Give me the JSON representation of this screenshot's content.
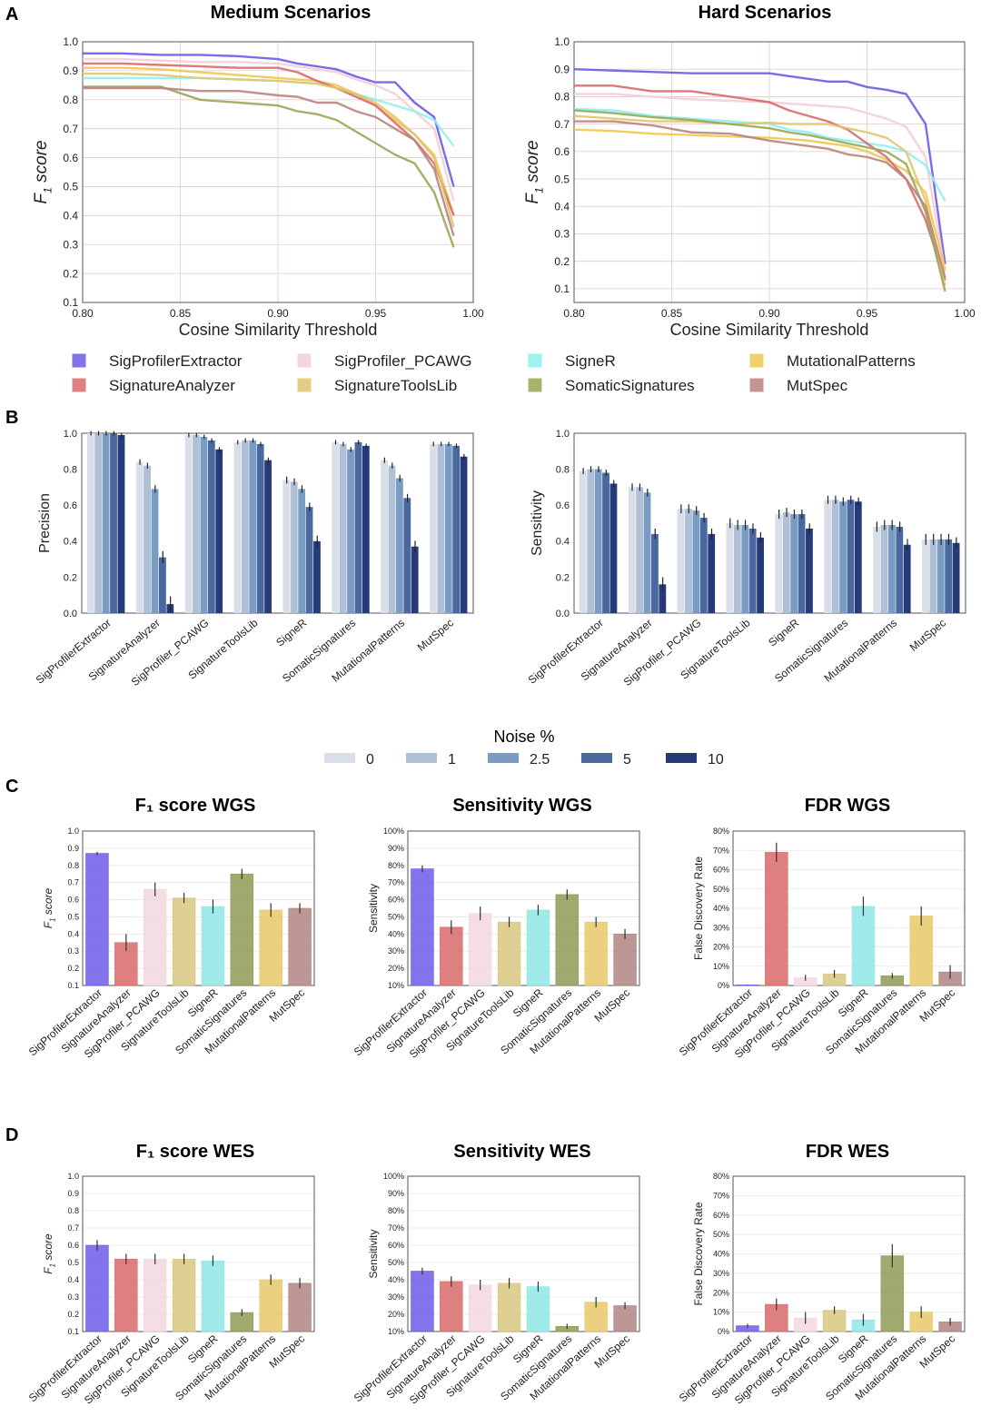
{
  "figure": {
    "panel_labels": [
      "A",
      "B",
      "C",
      "D"
    ]
  },
  "methods": [
    "SigProfilerExtractor",
    "SignatureAnalyzer",
    "SigProfiler_PCAWG",
    "SignatureToolsLib",
    "SigneR",
    "SomaticSignatures",
    "MutationalPatterns",
    "MutSpec"
  ],
  "method_colors": {
    "SigProfilerExtractor": "#6c5ce7",
    "SignatureAnalyzer": "#d96a6a",
    "SigProfiler_PCAWG": "#f2d7de",
    "SignatureToolsLib": "#d8c77f",
    "SigneR": "#8fe6e6",
    "SomaticSignatures": "#8f9a55",
    "MutationalPatterns": "#e8c868",
    "MutSpec": "#b08582"
  },
  "line_legend": {
    "entries": [
      "SigProfilerExtractor",
      "SigProfiler_PCAWG",
      "SigneR",
      "MutationalPatterns",
      "SignatureAnalyzer",
      "SignatureToolsLib",
      "SomaticSignatures",
      "MutSpec"
    ],
    "colors": [
      "#6c5ce7",
      "#f2cfd6",
      "#8ff0f0",
      "#f0c850",
      "#d96a6a",
      "#e0c570",
      "#9aa656",
      "#b9847f"
    ]
  },
  "noise_legend": {
    "title": "Noise %",
    "entries": [
      "0",
      "1",
      "2.5",
      "5",
      "10"
    ],
    "colors": [
      "#d9dee9",
      "#aebfd6",
      "#7a9bc2",
      "#48689e",
      "#263a78"
    ]
  },
  "chart_data": [
    {
      "id": "A-medium",
      "type": "line",
      "title": "Medium Scenarios",
      "xlabel": "Cosine Similarity Threshold",
      "ylabel": "F1 score",
      "xlim": [
        0.8,
        1.0
      ],
      "ylim": [
        0.1,
        1.0
      ],
      "xticks": [
        0.8,
        0.85,
        0.9,
        0.95,
        1.0
      ],
      "xtick_labels": [
        "0.80",
        "0.85",
        "0.90",
        "0.95",
        "1.00"
      ],
      "yticks": [
        0.1,
        0.2,
        0.3,
        0.4,
        0.5,
        0.6,
        0.7,
        0.8,
        0.9,
        1.0
      ],
      "ytick_labels": [
        "0.1",
        "0.2",
        "0.3",
        "0.4",
        "0.5",
        "0.6",
        "0.7",
        "0.8",
        "0.9",
        "1.0"
      ],
      "x": [
        0.8,
        0.82,
        0.84,
        0.86,
        0.88,
        0.9,
        0.91,
        0.92,
        0.93,
        0.94,
        0.95,
        0.96,
        0.97,
        0.98,
        0.99
      ],
      "series": [
        {
          "name": "SigProfilerExtractor",
          "values": [
            0.96,
            0.96,
            0.955,
            0.955,
            0.95,
            0.94,
            0.925,
            0.915,
            0.905,
            0.88,
            0.86,
            0.86,
            0.79,
            0.74,
            0.5
          ]
        },
        {
          "name": "SigProfiler_PCAWG",
          "values": [
            0.94,
            0.94,
            0.935,
            0.93,
            0.93,
            0.925,
            0.915,
            0.905,
            0.895,
            0.87,
            0.85,
            0.82,
            0.76,
            0.7,
            0.45
          ]
        },
        {
          "name": "SigneR",
          "values": [
            0.875,
            0.875,
            0.875,
            0.875,
            0.87,
            0.865,
            0.86,
            0.855,
            0.84,
            0.82,
            0.8,
            0.78,
            0.76,
            0.73,
            0.64
          ]
        },
        {
          "name": "MutationalPatterns",
          "values": [
            0.91,
            0.91,
            0.905,
            0.895,
            0.885,
            0.875,
            0.87,
            0.865,
            0.85,
            0.82,
            0.78,
            0.73,
            0.68,
            0.61,
            0.4
          ]
        },
        {
          "name": "SignatureAnalyzer",
          "values": [
            0.925,
            0.925,
            0.92,
            0.915,
            0.91,
            0.91,
            0.895,
            0.865,
            0.84,
            0.81,
            0.78,
            0.72,
            0.66,
            0.58,
            0.4
          ]
        },
        {
          "name": "SignatureToolsLib",
          "values": [
            0.89,
            0.89,
            0.885,
            0.875,
            0.87,
            0.865,
            0.86,
            0.855,
            0.84,
            0.82,
            0.79,
            0.74,
            0.68,
            0.6,
            0.36
          ]
        },
        {
          "name": "SomaticSignatures",
          "values": [
            0.845,
            0.845,
            0.845,
            0.8,
            0.79,
            0.78,
            0.76,
            0.75,
            0.73,
            0.69,
            0.65,
            0.61,
            0.58,
            0.48,
            0.29
          ]
        },
        {
          "name": "MutSpec",
          "values": [
            0.84,
            0.84,
            0.84,
            0.83,
            0.83,
            0.815,
            0.81,
            0.79,
            0.79,
            0.76,
            0.74,
            0.7,
            0.66,
            0.56,
            0.33
          ]
        }
      ]
    },
    {
      "id": "A-hard",
      "type": "line",
      "title": "Hard Scenarios",
      "xlabel": "Cosine Similarity Threshold",
      "ylabel": "F1 score",
      "xlim": [
        0.8,
        1.0
      ],
      "ylim": [
        0.05,
        1.0
      ],
      "xticks": [
        0.8,
        0.85,
        0.9,
        0.95,
        1.0
      ],
      "xtick_labels": [
        "0.80",
        "0.85",
        "0.90",
        "0.95",
        "1.00"
      ],
      "yticks": [
        0.1,
        0.2,
        0.3,
        0.4,
        0.5,
        0.6,
        0.7,
        0.8,
        0.9,
        1.0
      ],
      "ytick_labels": [
        "0.1",
        "0.2",
        "0.3",
        "0.4",
        "0.5",
        "0.6",
        "0.7",
        "0.8",
        "0.9",
        "1.0"
      ],
      "x": [
        0.8,
        0.82,
        0.84,
        0.86,
        0.88,
        0.9,
        0.91,
        0.92,
        0.93,
        0.94,
        0.95,
        0.96,
        0.97,
        0.98,
        0.99
      ],
      "series": [
        {
          "name": "SigProfilerExtractor",
          "values": [
            0.9,
            0.895,
            0.89,
            0.885,
            0.885,
            0.885,
            0.875,
            0.865,
            0.855,
            0.855,
            0.835,
            0.825,
            0.81,
            0.7,
            0.19
          ]
        },
        {
          "name": "SigProfiler_PCAWG",
          "values": [
            0.81,
            0.81,
            0.8,
            0.79,
            0.785,
            0.78,
            0.775,
            0.77,
            0.765,
            0.76,
            0.74,
            0.72,
            0.69,
            0.58,
            0.16
          ]
        },
        {
          "name": "SigneR",
          "values": [
            0.755,
            0.75,
            0.73,
            0.72,
            0.71,
            0.7,
            0.68,
            0.67,
            0.65,
            0.64,
            0.63,
            0.62,
            0.6,
            0.55,
            0.42
          ]
        },
        {
          "name": "MutationalPatterns",
          "values": [
            0.68,
            0.675,
            0.665,
            0.66,
            0.655,
            0.65,
            0.645,
            0.64,
            0.63,
            0.62,
            0.6,
            0.57,
            0.53,
            0.45,
            0.17
          ]
        },
        {
          "name": "SignatureAnalyzer",
          "values": [
            0.84,
            0.84,
            0.82,
            0.82,
            0.8,
            0.78,
            0.75,
            0.73,
            0.71,
            0.68,
            0.63,
            0.58,
            0.5,
            0.35,
            0.13
          ]
        },
        {
          "name": "SignatureToolsLib",
          "values": [
            0.73,
            0.72,
            0.71,
            0.71,
            0.7,
            0.705,
            0.7,
            0.7,
            0.7,
            0.685,
            0.67,
            0.65,
            0.6,
            0.42,
            0.11
          ]
        },
        {
          "name": "SomaticSignatures",
          "values": [
            0.75,
            0.74,
            0.725,
            0.715,
            0.7,
            0.685,
            0.67,
            0.66,
            0.645,
            0.63,
            0.615,
            0.6,
            0.555,
            0.38,
            0.09
          ]
        },
        {
          "name": "MutSpec",
          "values": [
            0.71,
            0.71,
            0.695,
            0.67,
            0.665,
            0.64,
            0.63,
            0.62,
            0.61,
            0.59,
            0.58,
            0.56,
            0.5,
            0.4,
            0.14
          ]
        }
      ]
    },
    {
      "id": "B-precision",
      "type": "bar",
      "title": "",
      "ylabel": "Precision",
      "ylim": [
        0,
        1.0
      ],
      "yticks": [
        0,
        0.2,
        0.4,
        0.6,
        0.8,
        1.0
      ],
      "ytick_labels": [
        "0.0",
        "0.2",
        "0.4",
        "0.6",
        "0.8",
        "1.0"
      ],
      "categories": [
        "SigProfilerExtractor",
        "SignatureAnalyzer",
        "SigProfiler_PCAWG",
        "SignatureToolsLib",
        "SigneR",
        "SomaticSignatures",
        "MutationalPatterns",
        "MutSpec"
      ],
      "series": [
        {
          "name": "0",
          "values": [
            1.0,
            0.84,
            0.99,
            0.95,
            0.74,
            0.95,
            0.85,
            0.94
          ]
        },
        {
          "name": "1",
          "values": [
            1.0,
            0.82,
            0.99,
            0.96,
            0.73,
            0.94,
            0.82,
            0.94
          ]
        },
        {
          "name": "2.5",
          "values": [
            1.0,
            0.69,
            0.98,
            0.96,
            0.69,
            0.91,
            0.75,
            0.94
          ]
        },
        {
          "name": "5",
          "values": [
            1.0,
            0.31,
            0.96,
            0.94,
            0.59,
            0.95,
            0.64,
            0.93
          ]
        },
        {
          "name": "10",
          "values": [
            0.99,
            0.05,
            0.91,
            0.85,
            0.4,
            0.93,
            0.37,
            0.87
          ]
        }
      ]
    },
    {
      "id": "B-sensitivity",
      "type": "bar",
      "title": "",
      "ylabel": "Sensitivity",
      "ylim": [
        0,
        1.0
      ],
      "yticks": [
        0,
        0.2,
        0.4,
        0.6,
        0.8,
        1.0
      ],
      "ytick_labels": [
        "0.0",
        "0.2",
        "0.4",
        "0.6",
        "0.8",
        "1.0"
      ],
      "categories": [
        "SigProfilerExtractor",
        "SignatureAnalyzer",
        "SigProfiler_PCAWG",
        "SignatureToolsLib",
        "SigneR",
        "SomaticSignatures",
        "MutationalPatterns",
        "MutSpec"
      ],
      "series": [
        {
          "name": "0",
          "values": [
            0.79,
            0.7,
            0.58,
            0.5,
            0.55,
            0.63,
            0.48,
            0.41
          ]
        },
        {
          "name": "1",
          "values": [
            0.8,
            0.7,
            0.58,
            0.49,
            0.56,
            0.63,
            0.49,
            0.41
          ]
        },
        {
          "name": "2.5",
          "values": [
            0.8,
            0.67,
            0.57,
            0.49,
            0.55,
            0.62,
            0.49,
            0.41
          ]
        },
        {
          "name": "5",
          "values": [
            0.78,
            0.44,
            0.53,
            0.47,
            0.55,
            0.63,
            0.48,
            0.41
          ]
        },
        {
          "name": "10",
          "values": [
            0.72,
            0.16,
            0.44,
            0.42,
            0.47,
            0.62,
            0.38,
            0.39
          ]
        }
      ]
    },
    {
      "id": "C-f1",
      "type": "bar",
      "title": "F₁ score WGS",
      "ylabel": "F1 score",
      "ylim": [
        0.1,
        1.0
      ],
      "yticks": [
        0.1,
        0.2,
        0.3,
        0.4,
        0.5,
        0.6,
        0.7,
        0.8,
        0.9,
        1.0
      ],
      "ytick_labels": [
        "0.1",
        "0.2",
        "0.3",
        "0.4",
        "0.5",
        "0.6",
        "0.7",
        "0.8",
        "0.9",
        "1.0"
      ],
      "categories": [
        "SigProfilerExtractor",
        "SignatureAnalyzer",
        "SigProfiler_PCAWG",
        "SignatureToolsLib",
        "SigneR",
        "SomaticSignatures",
        "MutationalPatterns",
        "MutSpec"
      ],
      "values": [
        0.87,
        0.35,
        0.66,
        0.61,
        0.56,
        0.75,
        0.54,
        0.55
      ],
      "errors": [
        0.01,
        0.05,
        0.04,
        0.03,
        0.04,
        0.03,
        0.04,
        0.03
      ]
    },
    {
      "id": "C-sens",
      "type": "bar",
      "title": "Sensitivity WGS",
      "ylabel": "Sensitivity",
      "ylim": [
        10,
        100
      ],
      "yticks": [
        10,
        20,
        30,
        40,
        50,
        60,
        70,
        80,
        90,
        100
      ],
      "ytick_labels": [
        "10%",
        "20%",
        "30%",
        "40%",
        "50%",
        "60%",
        "70%",
        "80%",
        "90%",
        "100%"
      ],
      "categories": [
        "SigProfilerExtractor",
        "SignatureAnalyzer",
        "SigProfiler_PCAWG",
        "SignatureToolsLib",
        "SigneR",
        "SomaticSignatures",
        "MutationalPatterns",
        "MutSpec"
      ],
      "values": [
        78,
        44,
        52,
        47,
        54,
        63,
        47,
        40
      ],
      "errors": [
        2,
        4,
        4,
        3,
        3,
        3,
        3,
        3
      ]
    },
    {
      "id": "C-fdr",
      "type": "bar",
      "title": "FDR WGS",
      "ylabel": "False Discovery Rate",
      "ylim": [
        0,
        80
      ],
      "yticks": [
        0,
        10,
        20,
        30,
        40,
        50,
        60,
        70,
        80
      ],
      "ytick_labels": [
        "0%",
        "10%",
        "20%",
        "30%",
        "40%",
        "50%",
        "60%",
        "70%",
        "80%"
      ],
      "categories": [
        "SigProfilerExtractor",
        "SignatureAnalyzer",
        "SigProfiler_PCAWG",
        "SignatureToolsLib",
        "SigneR",
        "SomaticSignatures",
        "MutationalPatterns",
        "MutSpec"
      ],
      "values": [
        0.3,
        69,
        4,
        6,
        41,
        5,
        36,
        7
      ],
      "errors": [
        0.2,
        5,
        1.5,
        2,
        5,
        1.5,
        5,
        3.5
      ]
    },
    {
      "id": "D-f1",
      "type": "bar",
      "title": "F₁ score WES",
      "ylabel": "F1 score",
      "ylim": [
        0.1,
        1.0
      ],
      "yticks": [
        0.1,
        0.2,
        0.3,
        0.4,
        0.5,
        0.6,
        0.7,
        0.8,
        0.9,
        1.0
      ],
      "ytick_labels": [
        "0.1",
        "0.2",
        "0.3",
        "0.4",
        "0.5",
        "0.6",
        "0.7",
        "0.8",
        "0.9",
        "1.0"
      ],
      "categories": [
        "SigProfilerExtractor",
        "SignatureAnalyzer",
        "SigProfiler_PCAWG",
        "SignatureToolsLib",
        "SigneR",
        "SomaticSignatures",
        "MutationalPatterns",
        "MutSpec"
      ],
      "values": [
        0.6,
        0.52,
        0.52,
        0.52,
        0.51,
        0.21,
        0.4,
        0.38
      ],
      "errors": [
        0.03,
        0.03,
        0.03,
        0.03,
        0.03,
        0.02,
        0.03,
        0.03
      ]
    },
    {
      "id": "D-sens",
      "type": "bar",
      "title": "Sensitivity WES",
      "ylabel": "Sensitivity",
      "ylim": [
        10,
        100
      ],
      "yticks": [
        10,
        20,
        30,
        40,
        50,
        60,
        70,
        80,
        90,
        100
      ],
      "ytick_labels": [
        "10%",
        "20%",
        "30%",
        "40%",
        "50%",
        "60%",
        "70%",
        "80%",
        "90%",
        "100%"
      ],
      "categories": [
        "SigProfilerExtractor",
        "SignatureAnalyzer",
        "SigProfiler_PCAWG",
        "SignatureToolsLib",
        "SigneR",
        "SomaticSignatures",
        "MutationalPatterns",
        "MutSpec"
      ],
      "values": [
        45,
        39,
        37,
        38,
        36,
        13,
        27,
        25
      ],
      "errors": [
        2,
        3,
        3,
        3,
        3,
        1.5,
        3,
        2
      ]
    },
    {
      "id": "D-fdr",
      "type": "bar",
      "title": "FDR WES",
      "ylabel": "False Discovery Rate",
      "ylim": [
        0,
        80
      ],
      "yticks": [
        0,
        10,
        20,
        30,
        40,
        50,
        60,
        70,
        80
      ],
      "ytick_labels": [
        "0%",
        "10%",
        "20%",
        "30%",
        "40%",
        "50%",
        "60%",
        "70%",
        "80%"
      ],
      "categories": [
        "SigProfilerExtractor",
        "SignatureAnalyzer",
        "SigProfiler_PCAWG",
        "SignatureToolsLib",
        "SigneR",
        "SomaticSignatures",
        "MutationalPatterns",
        "MutSpec"
      ],
      "values": [
        3,
        14,
        7,
        11,
        6,
        39,
        10,
        5
      ],
      "errors": [
        1,
        3,
        3,
        2,
        3,
        6,
        3,
        2
      ]
    }
  ]
}
